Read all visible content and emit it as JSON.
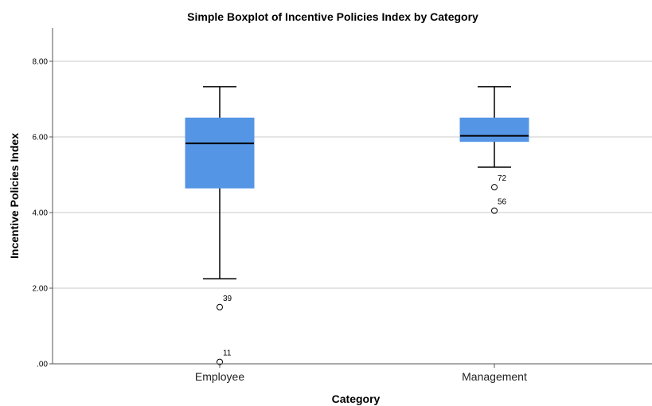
{
  "chart_data": {
    "type": "boxplot",
    "title": "Simple Boxplot of Incentive Policies Index by Category",
    "xlabel": "Category",
    "ylabel": "Incentive Policies Index",
    "ylim": [
      0,
      8.8
    ],
    "yticks": [
      0,
      2,
      4,
      6,
      8
    ],
    "ytick_labels": [
      ".00",
      "2.00",
      "4.00",
      "6.00",
      "8.00"
    ],
    "grid": "horizontal",
    "box_color": "#5595E5",
    "categories": [
      "Employee",
      "Management"
    ],
    "boxes": [
      {
        "category": "Employee",
        "whisker_low": 2.25,
        "q1": 4.65,
        "median": 5.83,
        "q3": 6.5,
        "whisker_high": 7.33,
        "outliers": [
          {
            "value": 1.5,
            "label": "39"
          },
          {
            "value": 0.05,
            "label": "11"
          }
        ]
      },
      {
        "category": "Management",
        "whisker_low": 5.2,
        "q1": 5.88,
        "median": 6.03,
        "q3": 6.5,
        "whisker_high": 7.33,
        "outliers": [
          {
            "value": 4.67,
            "label": "72"
          },
          {
            "value": 4.05,
            "label": "56"
          }
        ]
      }
    ]
  }
}
